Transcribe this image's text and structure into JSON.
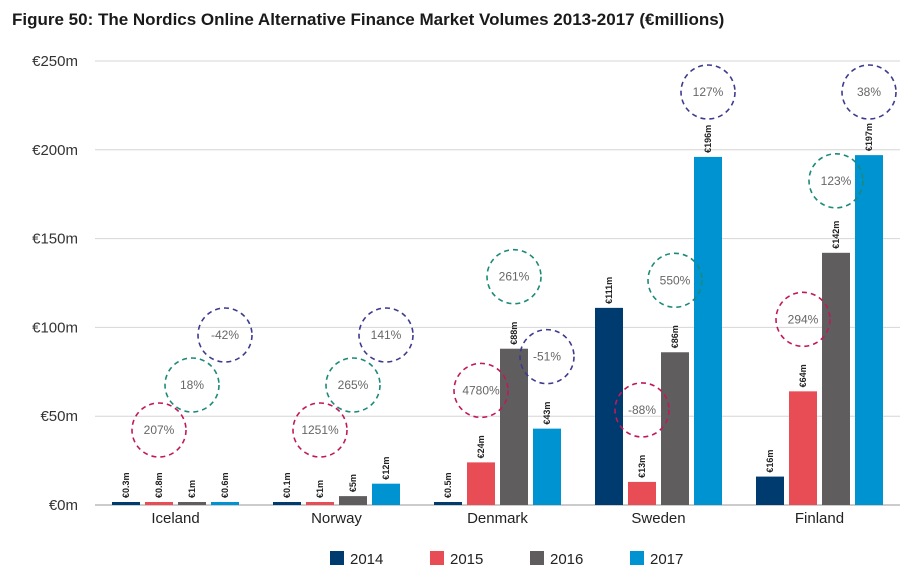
{
  "title": "Figure 50: The Nordics Online Alternative Finance Market Volumes 2013-2017 (€millions)",
  "chart_data": {
    "type": "bar",
    "title": "Figure 50: The Nordics Online Alternative Finance Market Volumes 2013-2017 (€millions)",
    "categories": [
      "Iceland",
      "Norway",
      "Denmark",
      "Sweden",
      "Finland"
    ],
    "y_ticks": [
      "€0m",
      "€50m",
      "€100m",
      "€150m",
      "€200m",
      "€250m"
    ],
    "ylim": [
      0,
      250
    ],
    "grid": true,
    "legend_position": "bottom",
    "series": [
      {
        "name": "2014",
        "color": "#003b6f",
        "values": [
          0.3,
          0.1,
          0.5,
          111,
          16
        ],
        "labels": [
          "€0.3m",
          "€0.1m",
          "€0.5m",
          "€111m",
          "€16m"
        ]
      },
      {
        "name": "2015",
        "color": "#e84c55",
        "values": [
          0.8,
          1,
          24,
          13,
          64
        ],
        "labels": [
          "€0.8m",
          "€1m",
          "€24m",
          "€13m",
          "€64m"
        ]
      },
      {
        "name": "2016",
        "color": "#5f5d5e",
        "values": [
          1,
          5,
          88,
          86,
          142
        ],
        "labels": [
          "€1m",
          "€5m",
          "€88m",
          "€86m",
          "€142m"
        ]
      },
      {
        "name": "2017",
        "color": "#0093d1",
        "values": [
          0.6,
          12,
          43,
          196,
          197
        ],
        "labels": [
          "€0.6m",
          "€12m",
          "€43m",
          "€196m",
          "€197m"
        ]
      }
    ],
    "growth_annotations": [
      {
        "category": "Iceland",
        "series": "2015",
        "text": "207%",
        "color": "#c2185b"
      },
      {
        "category": "Iceland",
        "series": "2016",
        "text": "18%",
        "color": "#1b8a78"
      },
      {
        "category": "Iceland",
        "series": "2017",
        "text": "-42%",
        "color": "#3d3b8e"
      },
      {
        "category": "Norway",
        "series": "2015",
        "text": "1251%",
        "color": "#c2185b"
      },
      {
        "category": "Norway",
        "series": "2016",
        "text": "265%",
        "color": "#1b8a78"
      },
      {
        "category": "Norway",
        "series": "2017",
        "text": "141%",
        "color": "#3d3b8e"
      },
      {
        "category": "Denmark",
        "series": "2015",
        "text": "4780%",
        "color": "#c2185b"
      },
      {
        "category": "Denmark",
        "series": "2016",
        "text": "261%",
        "color": "#1b8a78"
      },
      {
        "category": "Denmark",
        "series": "2017",
        "text": "-51%",
        "color": "#3d3b8e"
      },
      {
        "category": "Sweden",
        "series": "2015",
        "text": "-88%",
        "color": "#c2185b"
      },
      {
        "category": "Sweden",
        "series": "2016",
        "text": "550%",
        "color": "#1b8a78"
      },
      {
        "category": "Sweden",
        "series": "2017",
        "text": "127%",
        "color": "#3d3b8e"
      },
      {
        "category": "Finland",
        "series": "2015",
        "text": "294%",
        "color": "#c2185b"
      },
      {
        "category": "Finland",
        "series": "2016",
        "text": "123%",
        "color": "#1b8a78"
      },
      {
        "category": "Finland",
        "series": "2017",
        "text": "38%",
        "color": "#3d3b8e"
      }
    ]
  }
}
